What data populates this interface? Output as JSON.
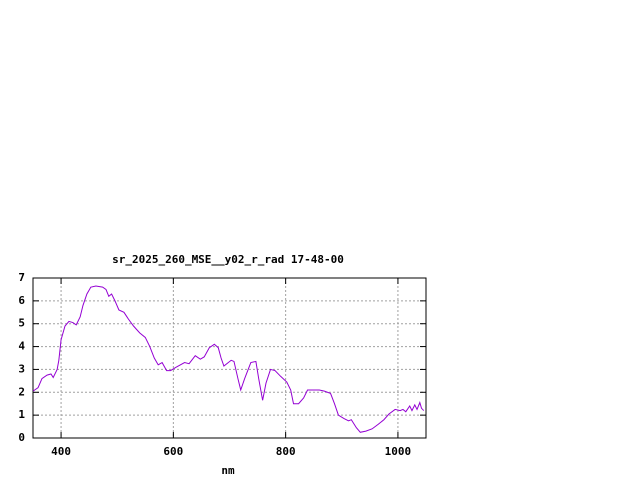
{
  "chart_data": {
    "type": "line",
    "title": "sr_2025_260_MSE__y02_r_rad 17-48-00",
    "x_label": "nm",
    "x": [
      350,
      359,
      366,
      375,
      382,
      386,
      393,
      396,
      400,
      407,
      414,
      421,
      427,
      434,
      439,
      446,
      453,
      462,
      474,
      480,
      485,
      490,
      496,
      503,
      512,
      520,
      529,
      540,
      550,
      558,
      566,
      573,
      580,
      588,
      595,
      605,
      620,
      628,
      639,
      648,
      655,
      664,
      673,
      680,
      685,
      690,
      703,
      708,
      715,
      720,
      727,
      738,
      747,
      752,
      759,
      765,
      773,
      781,
      791,
      802,
      809,
      814,
      823,
      832,
      839,
      850,
      860,
      869,
      880,
      887,
      894,
      904,
      912,
      917,
      926,
      933,
      943,
      954,
      965,
      975,
      984,
      995,
      1004,
      1009,
      1014,
      1021,
      1025,
      1030,
      1034,
      1039,
      1042,
      1046
    ],
    "series": [
      {
        "color": "#9400d3",
        "values": [
          2.05,
          2.2,
          2.6,
          2.75,
          2.8,
          2.65,
          3.0,
          3.4,
          4.3,
          4.9,
          5.1,
          5.05,
          4.95,
          5.3,
          5.8,
          6.3,
          6.6,
          6.65,
          6.6,
          6.5,
          6.2,
          6.3,
          6.0,
          5.6,
          5.5,
          5.2,
          4.9,
          4.6,
          4.4,
          4.0,
          3.5,
          3.2,
          3.3,
          2.95,
          2.95,
          3.1,
          3.3,
          3.25,
          3.6,
          3.45,
          3.55,
          3.95,
          4.1,
          3.95,
          3.5,
          3.15,
          3.4,
          3.35,
          2.6,
          2.1,
          2.6,
          3.3,
          3.35,
          2.6,
          1.65,
          2.4,
          3.0,
          2.95,
          2.7,
          2.45,
          2.1,
          1.5,
          1.5,
          1.75,
          2.1,
          2.1,
          2.1,
          2.05,
          1.95,
          1.5,
          1.0,
          0.85,
          0.75,
          0.8,
          0.45,
          0.25,
          0.3,
          0.4,
          0.6,
          0.8,
          1.05,
          1.25,
          1.2,
          1.25,
          1.15,
          1.4,
          1.2,
          1.45,
          1.25,
          1.55,
          1.3,
          1.2
        ]
      }
    ],
    "xlim": [
      350,
      1050
    ],
    "ylim": [
      0,
      7
    ],
    "xticks": [
      400,
      600,
      800,
      1000
    ],
    "yticks": [
      0,
      1,
      2,
      3,
      4,
      5,
      6,
      7
    ],
    "grid": true
  }
}
